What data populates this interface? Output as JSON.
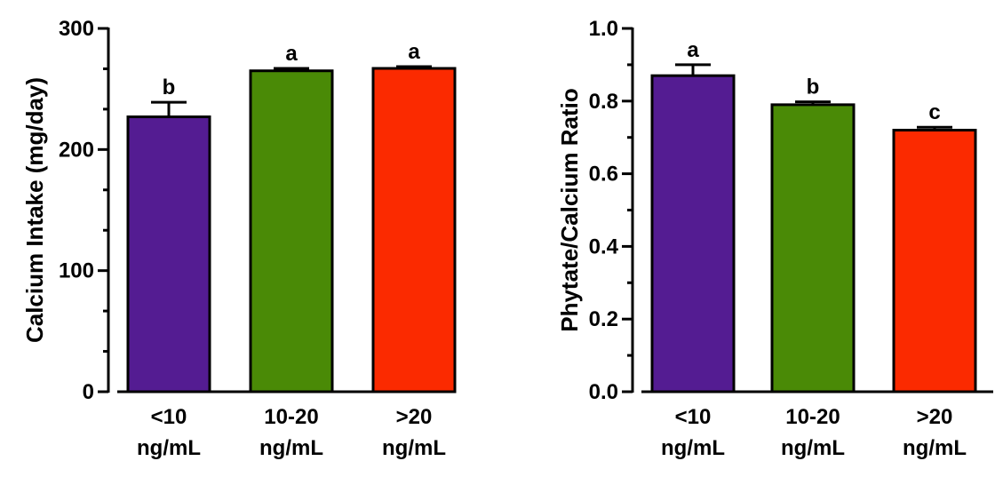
{
  "chart_data": [
    {
      "type": "bar",
      "title": "",
      "xlabel": "",
      "ylabel": "Calcium Intake (mg/day)",
      "ylim": [
        0,
        300
      ],
      "yticks": [
        0,
        100,
        200,
        300
      ],
      "ytick_labels": [
        "0",
        "100",
        "200",
        "300"
      ],
      "categories": [
        {
          "line1": "<10",
          "line2": "ng/mL"
        },
        {
          "line1": "10-20",
          "line2": "ng/mL"
        },
        {
          "line1": ">20",
          "line2": "ng/mL"
        }
      ],
      "values": [
        227,
        265,
        267
      ],
      "errors": [
        12,
        2,
        1.5
      ],
      "significance": [
        "b",
        "a",
        "a"
      ],
      "colors": [
        "#541c92",
        "#4a8a06",
        "#fb2a00"
      ]
    },
    {
      "type": "bar",
      "title": "",
      "xlabel": "",
      "ylabel": "Phytate/Calcium Ratio",
      "ylim": [
        0,
        1.0
      ],
      "yticks": [
        0,
        0.2,
        0.4,
        0.6,
        0.8,
        1.0
      ],
      "ytick_labels": [
        "0.0",
        "0.2",
        "0.4",
        "0.6",
        "0.8",
        "1.0"
      ],
      "categories": [
        {
          "line1": "<10",
          "line2": "ng/mL"
        },
        {
          "line1": "10-20",
          "line2": "ng/mL"
        },
        {
          "line1": ">20",
          "line2": "ng/mL"
        }
      ],
      "values": [
        0.87,
        0.79,
        0.72
      ],
      "errors": [
        0.03,
        0.008,
        0.008
      ],
      "significance": [
        "a",
        "b",
        "c"
      ],
      "colors": [
        "#541c92",
        "#4a8a06",
        "#fb2a00"
      ]
    }
  ]
}
